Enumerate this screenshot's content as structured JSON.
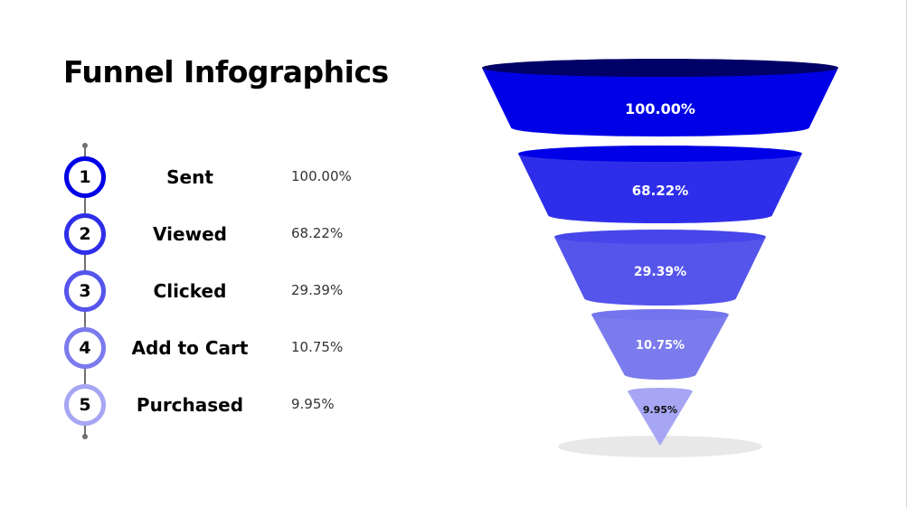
{
  "title": "Funnel Infographics",
  "colors": [
    "#0000e6",
    "#2e2eea",
    "#5555ec",
    "#7b7bee",
    "#a6a6f4"
  ],
  "top_colors": [
    "#000066",
    "#0000e6",
    "#4646ea",
    "#7474ee",
    "#a6a6f4"
  ],
  "label_colors": [
    "#ffffff",
    "#ffffff",
    "#ffffff",
    "#ffffff",
    "#111111"
  ],
  "chart_data": {
    "type": "funnel",
    "title": "Funnel Infographics",
    "categories": [
      "Sent",
      "Viewed",
      "Clicked",
      "Add to Cart",
      "Purchased"
    ],
    "values": [
      100.0,
      68.22,
      29.39,
      10.75,
      9.95
    ],
    "value_labels": [
      "100.00%",
      "68.22%",
      "29.39%",
      "10.75%",
      "9.95%"
    ],
    "unit": "%"
  },
  "steps": [
    {
      "number": "1",
      "label": "Sent",
      "value": "100.00%"
    },
    {
      "number": "2",
      "label": "Viewed",
      "value": "68.22%"
    },
    {
      "number": "3",
      "label": "Clicked",
      "value": "29.39%"
    },
    {
      "number": "4",
      "label": "Add to Cart",
      "value": "10.75%"
    },
    {
      "number": "5",
      "label": "Purchased",
      "value": "9.95%"
    }
  ]
}
